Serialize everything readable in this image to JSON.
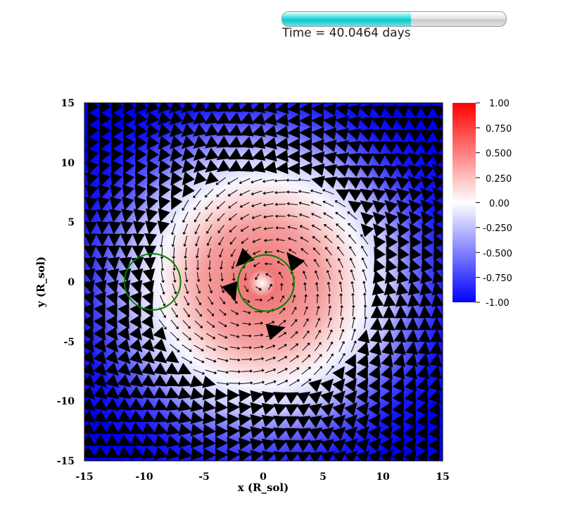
{
  "header": {
    "progress": 0.575,
    "time_label": "Time = 40.0464 days"
  },
  "chart_data": {
    "type": "heatmap",
    "title": "",
    "xlabel": "x (R_sol)",
    "ylabel": "y (R_sol)",
    "xlim": [
      -15,
      15
    ],
    "ylim": [
      -15,
      15
    ],
    "x_ticks": [
      "-15",
      "-10",
      "-5",
      "0",
      "5",
      "10",
      "15"
    ],
    "y_ticks": [
      "15",
      "10",
      "5",
      "0",
      "-5",
      "-10",
      "-15"
    ],
    "colormap": {
      "low": "#0000ff",
      "mid": "#ffffff",
      "high": "#ff0000"
    },
    "colorbar": {
      "range": [
        -1.0,
        1.0
      ],
      "ticks": [
        "1.00",
        "0.750",
        "0.500",
        "0.250",
        "0.00",
        "-0.250",
        "-0.500",
        "-0.750",
        "-1.00"
      ]
    },
    "circles": [
      {
        "cx": -9.3,
        "cy": 0.0,
        "r": 2.35,
        "color": "#008000"
      },
      {
        "cx": 0.2,
        "cy": -0.1,
        "r": 2.35,
        "color": "#008000"
      }
    ],
    "vector_field": "velocity arrows swirling counter-clockwise around the origin; larger arrows toward the outer region",
    "grid": false,
    "legend": "colorbar right"
  }
}
